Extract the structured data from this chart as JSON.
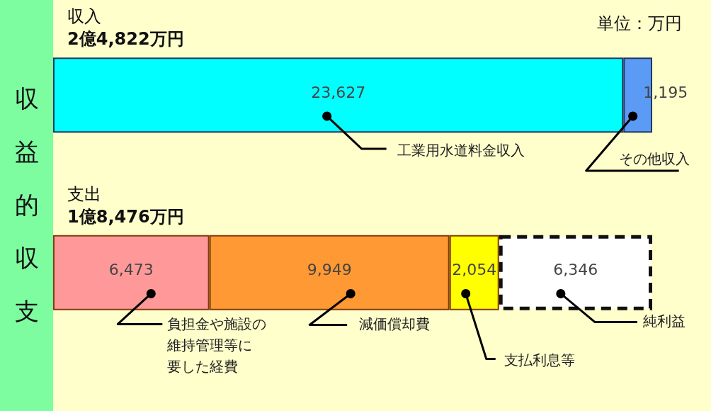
{
  "chart_data": {
    "type": "bar",
    "title": "収益的収支",
    "orientation": "horizontal",
    "stacked": true,
    "categories": [
      "収入",
      "支出"
    ],
    "series": [
      {
        "name": "工業用水道料金収入",
        "color": "#00ffff",
        "values": [
          23627,
          null
        ],
        "value_labels": [
          "23,627",
          null
        ]
      },
      {
        "name": "その他収入",
        "color": "#5b9bf5",
        "values": [
          1195,
          null
        ],
        "value_labels": [
          "1,195",
          null
        ]
      },
      {
        "name": "負担金や施設の維持管理等に要した経費",
        "color": "#ff9999",
        "values": [
          null,
          6473
        ],
        "value_labels": [
          null,
          "6,473"
        ]
      },
      {
        "name": "減価償却費",
        "color": "#ff9933",
        "values": [
          null,
          9949
        ],
        "value_labels": [
          null,
          "9,949"
        ]
      },
      {
        "name": "支払利息等",
        "color": "#ffff00",
        "values": [
          null,
          2054
        ],
        "value_labels": [
          null,
          "2,054"
        ]
      },
      {
        "name": "純利益",
        "color": "#ffffff",
        "line_style": "dashed",
        "values": [
          null,
          6346
        ],
        "value_labels": [
          null,
          "6,346"
        ]
      }
    ],
    "annotations": [
      "2億4,822万円",
      "1億8,476万円",
      "単位：万円"
    ]
  }
}
